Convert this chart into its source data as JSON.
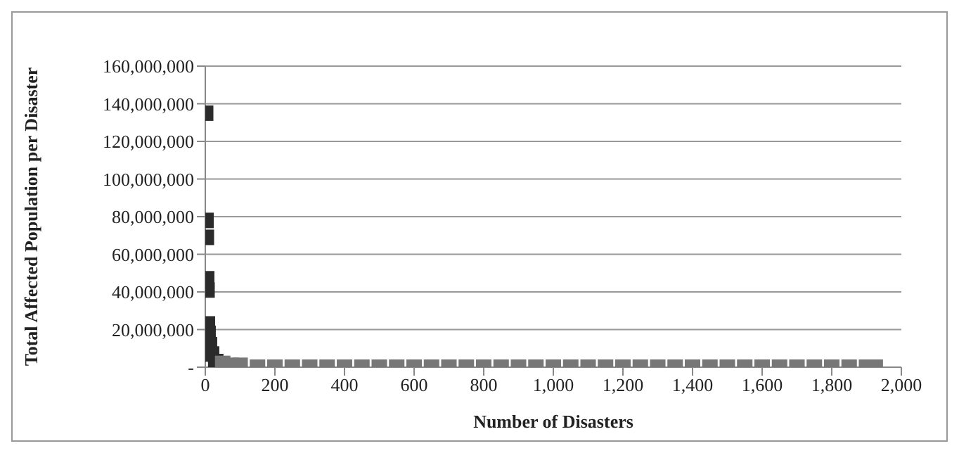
{
  "chart_data": {
    "type": "scatter",
    "xlabel": "Number of Disasters",
    "ylabel": "Total Affected Population per Disaster",
    "xlim": [
      0,
      2000
    ],
    "xticks": [
      0,
      200,
      400,
      600,
      800,
      {
        "value": 1000,
        "label": "1,000"
      },
      {
        "value": 1200,
        "label": "1,200"
      },
      {
        "value": 1400,
        "label": "1,400"
      },
      {
        "value": 1600,
        "label": "1,600"
      },
      {
        "value": 1800,
        "label": "1,800"
      },
      {
        "value": 2000,
        "label": "2,000"
      }
    ],
    "ylim": [
      0,
      160000000
    ],
    "yticks": [
      {
        "value": 0,
        "label": "-"
      },
      {
        "value": 20000000,
        "label": "20,000,000"
      },
      {
        "value": 40000000,
        "label": "40,000,000"
      },
      {
        "value": 60000000,
        "label": "60,000,000"
      },
      {
        "value": 80000000,
        "label": "80,000,000"
      },
      {
        "value": 100000000,
        "label": "100,000,000"
      },
      {
        "value": 120000000,
        "label": "120,000,000"
      },
      {
        "value": 140000000,
        "label": "140,000,000"
      },
      {
        "value": 160000000,
        "label": "160,000,000"
      }
    ],
    "grid": "y",
    "marker": "square",
    "legend": false,
    "series": [
      {
        "color": "#2b2b2b",
        "x": [
          1,
          2,
          3,
          4,
          5,
          6,
          8,
          12,
          18,
          30
        ],
        "values": [
          135000000,
          78000000,
          69000000,
          47000000,
          41000000,
          23000000,
          18000000,
          12000000,
          7000000,
          3000000
        ]
      },
      {
        "color": "#777777",
        "x": [
          50,
          75,
          100,
          150,
          200,
          250,
          300,
          350,
          400,
          450,
          500,
          550,
          600,
          650,
          700,
          750,
          800,
          850,
          900,
          950,
          1000,
          1050,
          1100,
          1150,
          1200,
          1250,
          1300,
          1350,
          1400,
          1450,
          1500,
          1550,
          1600,
          1650,
          1700,
          1750,
          1800,
          1850,
          1900,
          1925
        ],
        "values": [
          2000000,
          1000000,
          1000000,
          0,
          0,
          0,
          0,
          0,
          0,
          0,
          0,
          0,
          0,
          0,
          0,
          0,
          0,
          0,
          0,
          0,
          0,
          0,
          0,
          0,
          0,
          0,
          0,
          0,
          0,
          0,
          0,
          0,
          0,
          0,
          0,
          0,
          0,
          0,
          0,
          0
        ]
      }
    ]
  }
}
